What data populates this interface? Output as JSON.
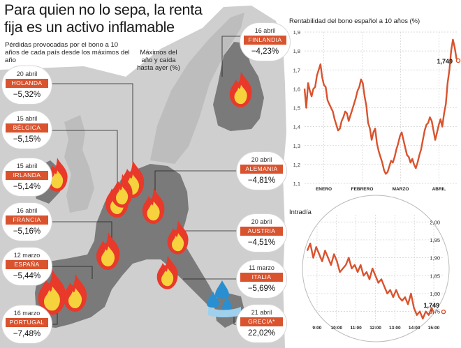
{
  "headline": {
    "title": "Para quien no lo sepa, la renta fija es un activo inflamable",
    "subtitle": "Pérdidas provocadas por el bono a 10 años de cada país desde los máximos del año",
    "max_note": "Máximos del año y caída hasta ayer (%)"
  },
  "colors": {
    "accent": "#d9532e",
    "land_highlight": "#7a7a7a",
    "land_other": "#cfcfcf",
    "sea": "#ffffff",
    "flame_outer": "#e8392a",
    "flame_inner": "#f6d33c",
    "water_drop": "#2a8fd0"
  },
  "callouts": [
    {
      "date": "20 abril",
      "country": "HOLANDA",
      "value": "−5,32%"
    },
    {
      "date": "15 abril",
      "country": "BÉLGICA",
      "value": "−5,15%"
    },
    {
      "date": "15 abril",
      "country": "IRLANDA",
      "value": "−5,14%"
    },
    {
      "date": "16 abril",
      "country": "FRANCIA",
      "value": "−5,16%"
    },
    {
      "date": "12 marzo",
      "country": "ESPAÑA",
      "value": "−5,44%"
    },
    {
      "date": "16 marzo",
      "country": "PORTUGAL",
      "value": "−7,48%"
    },
    {
      "date": "16 abril",
      "country": "FINLANDIA",
      "value": "−4,23%"
    },
    {
      "date": "20 abril",
      "country": "ALEMANIA",
      "value": "−4,81%"
    },
    {
      "date": "20 abril",
      "country": "AUSTRIA",
      "value": "−4,51%"
    },
    {
      "date": "11 marzo",
      "country": "ITALIA",
      "value": "−5,69%"
    },
    {
      "date": "21 abril",
      "country": "GRECIA*",
      "value": "22,02%"
    }
  ],
  "chart_data": [
    {
      "type": "line",
      "title": "Rentabilidad del bono español a 10 años (%)",
      "xlabel": "",
      "ylabel": "",
      "ylim": [
        1.1,
        1.9
      ],
      "yticks": [
        "1,9",
        "1,8",
        "1,7",
        "1,6",
        "1,5",
        "1,4",
        "1,3",
        "1,2",
        "1,1"
      ],
      "xticks": [
        "ENERO",
        "FEBRERO",
        "MARZO",
        "ABRIL"
      ],
      "last_value_label": "1,749",
      "grid": true,
      "series": [
        {
          "values": [
            1.6,
            1.5,
            1.63,
            1.59,
            1.56,
            1.6,
            1.61,
            1.67,
            1.7,
            1.73,
            1.66,
            1.62,
            1.61,
            1.54,
            1.52,
            1.5,
            1.48,
            1.44,
            1.41,
            1.38,
            1.39,
            1.43,
            1.45,
            1.48,
            1.47,
            1.43,
            1.46,
            1.49,
            1.52,
            1.55,
            1.59,
            1.61,
            1.65,
            1.63,
            1.56,
            1.51,
            1.42,
            1.39,
            1.33,
            1.37,
            1.39,
            1.31,
            1.27,
            1.24,
            1.21,
            1.17,
            1.15,
            1.16,
            1.19,
            1.22,
            1.21,
            1.24,
            1.28,
            1.31,
            1.35,
            1.37,
            1.33,
            1.29,
            1.25,
            1.24,
            1.21,
            1.23,
            1.2,
            1.18,
            1.21,
            1.25,
            1.28,
            1.33,
            1.38,
            1.41,
            1.42,
            1.45,
            1.43,
            1.38,
            1.33,
            1.37,
            1.41,
            1.44,
            1.4,
            1.47,
            1.52,
            1.63,
            1.7,
            1.8,
            1.86,
            1.82,
            1.76,
            1.749
          ]
        }
      ]
    },
    {
      "type": "line",
      "title": "Intradía",
      "xlabel": "",
      "ylabel": "",
      "ylim": [
        1.72,
        2.02
      ],
      "yticks": [
        "2,00",
        "1,95",
        "1,90",
        "1,85",
        "1,80",
        "1,75"
      ],
      "xticks": [
        "9:00",
        "10:00",
        "11:00",
        "12:00",
        "13:00",
        "14:00",
        "15:00"
      ],
      "last_value_label": "1,749",
      "grid": true,
      "series": [
        {
          "values": [
            1.92,
            1.94,
            1.9,
            1.93,
            1.91,
            1.89,
            1.92,
            1.9,
            1.88,
            1.91,
            1.89,
            1.86,
            1.87,
            1.88,
            1.9,
            1.87,
            1.88,
            1.86,
            1.88,
            1.85,
            1.86,
            1.84,
            1.87,
            1.85,
            1.83,
            1.84,
            1.82,
            1.8,
            1.81,
            1.79,
            1.81,
            1.79,
            1.78,
            1.79,
            1.77,
            1.8,
            1.76,
            1.74,
            1.75,
            1.73,
            1.75,
            1.74,
            1.76,
            1.74,
            1.75,
            1.74,
            1.749
          ]
        }
      ]
    }
  ]
}
